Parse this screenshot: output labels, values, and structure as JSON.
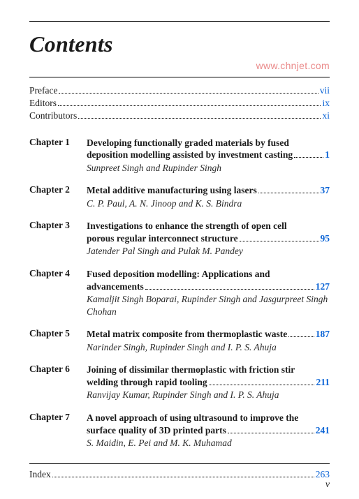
{
  "heading": "Contents",
  "watermark": "www.chnjet.com",
  "frontMatter": [
    {
      "label": "Preface",
      "page": "vii"
    },
    {
      "label": "Editors",
      "page": "ix"
    },
    {
      "label": "Contributors",
      "page": "xi"
    }
  ],
  "chapters": [
    {
      "num": "Chapter 1",
      "titleLines": [
        "Developing functionally graded materials by fused",
        "deposition modelling assisted by investment casting"
      ],
      "page": "1",
      "authors": "Sunpreet Singh and Rupinder Singh"
    },
    {
      "num": "Chapter 2",
      "titleLines": [
        "Metal additive manufacturing using lasers"
      ],
      "page": "37",
      "authors": "C. P. Paul, A. N. Jinoop and K. S. Bindra"
    },
    {
      "num": "Chapter 3",
      "titleLines": [
        "Investigations to enhance the strength of open cell",
        "porous regular interconnect structure"
      ],
      "page": "95",
      "authors": "Jatender Pal Singh and Pulak M. Pandey"
    },
    {
      "num": "Chapter 4",
      "titleLines": [
        "Fused deposition modelling: Applications and",
        "advancements"
      ],
      "page": "127",
      "authors": "Kamaljit Singh Boparai, Rupinder Singh and Jasgurpreet Singh Chohan"
    },
    {
      "num": "Chapter 5",
      "titleLines": [
        "Metal matrix composite from thermoplastic waste"
      ],
      "page": "187",
      "authors": "Narinder Singh, Rupinder Singh and I. P. S. Ahuja"
    },
    {
      "num": "Chapter 6",
      "titleLines": [
        "Joining of dissimilar thermoplastic with friction stir",
        "welding through rapid tooling"
      ],
      "page": "211",
      "authors": "Ranvijay Kumar, Rupinder Singh and I. P. S. Ahuja"
    },
    {
      "num": "Chapter 7",
      "titleLines": [
        "A novel approach of using ultrasound to improve the",
        "surface quality of 3D printed parts"
      ],
      "page": "241",
      "authors": "S. Maidin, E. Pei and M. K. Muhamad"
    }
  ],
  "index": {
    "label": "Index",
    "page": "263"
  },
  "footerPage": "v",
  "colors": {
    "page_link": "#0b64d6",
    "watermark": "#ea8a8a",
    "text": "#1a1a1a"
  }
}
